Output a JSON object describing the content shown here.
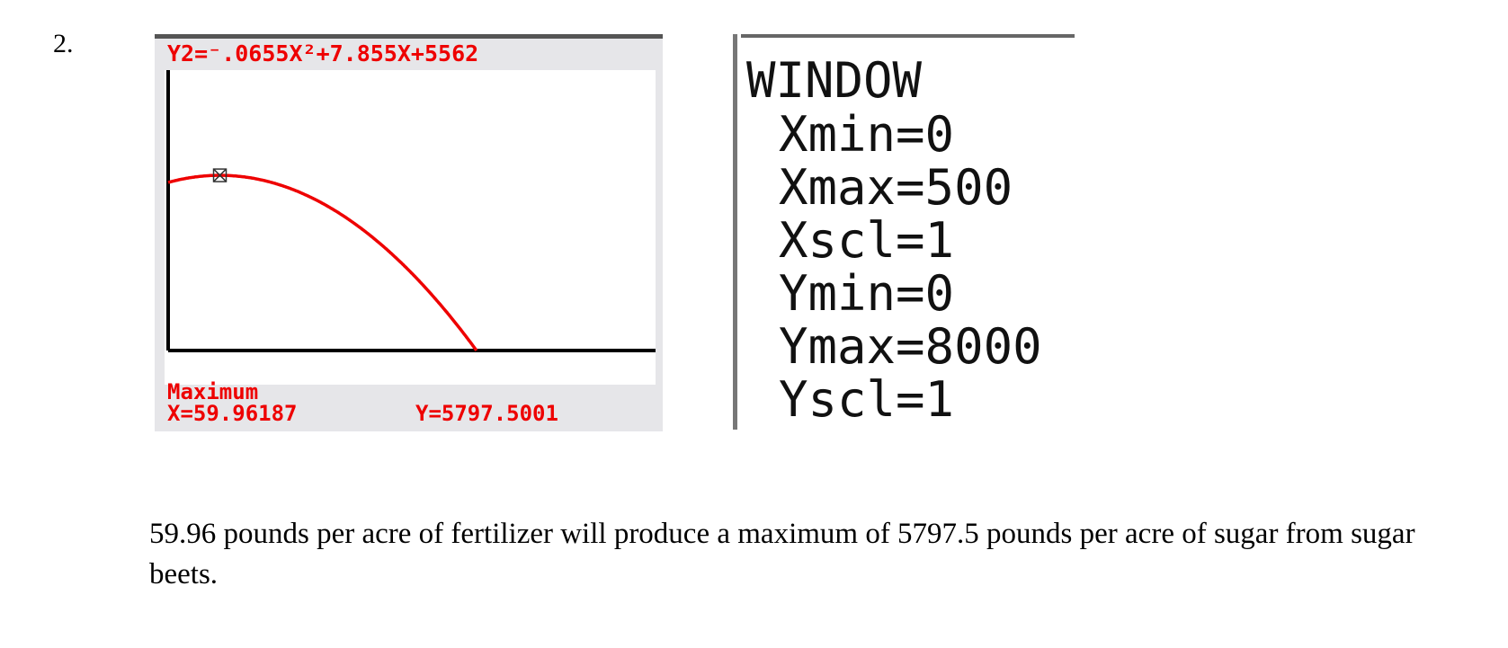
{
  "problem_number": "2.",
  "calculator": {
    "equation": "Y2=⁻.0655X²+7.855X+5562",
    "status_title": "Maximum",
    "x_readout": "X=59.96187",
    "y_readout": "Y=5797.5001",
    "colors": {
      "accent": "#ee0000",
      "screen_bg": "#e6e6e9",
      "plot_bg": "#ffffff",
      "axes": "#000000"
    }
  },
  "window": {
    "title": "WINDOW",
    "settings": [
      "Xmin=0",
      "Xmax=500",
      "Xscl=1",
      "Ymin=0",
      "Ymax=8000",
      "Yscl=1"
    ]
  },
  "chart_data": {
    "type": "line",
    "function": {
      "a": -0.0655,
      "b": 7.855,
      "c": 5562
    },
    "xlim": [
      0,
      500
    ],
    "ylim": [
      0,
      8000
    ],
    "maximum": {
      "x": 59.96187,
      "y": 5797.5001
    }
  },
  "answer": "59.96 pounds per acre of fertilizer will produce a maximum of 5797.5 pounds per acre of sugar from sugar beets."
}
